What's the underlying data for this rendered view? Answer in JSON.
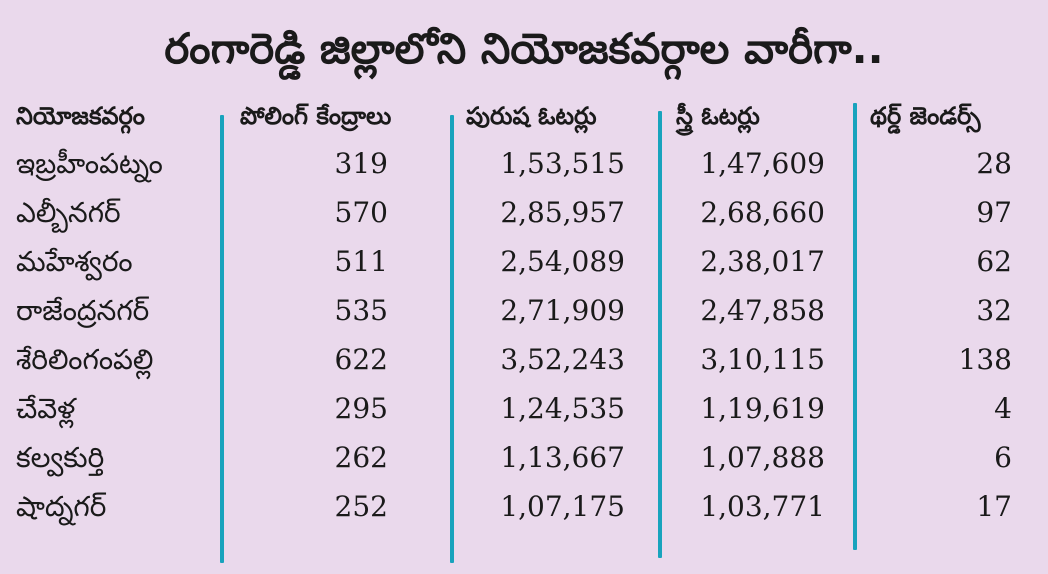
{
  "title": "రంగారెడ్డి జిల్లాలోని నియోజకవర్గాల వారీగా..",
  "headers": {
    "constituency": "నియోజకవర్గం",
    "polling_centres": "పోలింగ్ కేంద్రాలు",
    "male_voters": "పురుష ఓటర్లు",
    "female_voters": "స్త్రీ ఓటర్లు",
    "third_gender": "థర్డ్ జెండర్స్"
  },
  "rows": [
    {
      "name": "ఇబ్రహీంపట్నం",
      "polling_centres": "319",
      "male_voters": "1,53,515",
      "female_voters": "1,47,609",
      "third_gender": "28"
    },
    {
      "name": "ఎల్బీనగర్",
      "polling_centres": "570",
      "male_voters": "2,85,957",
      "female_voters": "2,68,660",
      "third_gender": "97"
    },
    {
      "name": "మహేశ్వరం",
      "polling_centres": "511",
      "male_voters": "2,54,089",
      "female_voters": "2,38,017",
      "third_gender": "62"
    },
    {
      "name": "రాజేంద్రనగర్",
      "polling_centres": "535",
      "male_voters": "2,71,909",
      "female_voters": "2,47,858",
      "third_gender": "32"
    },
    {
      "name": "శేరిలింగంపల్లి",
      "polling_centres": "622",
      "male_voters": "3,52,243",
      "female_voters": "3,10,115",
      "third_gender": "138"
    },
    {
      "name": "చేవెళ్ల",
      "polling_centres": "295",
      "male_voters": "1,24,535",
      "female_voters": "1,19,619",
      "third_gender": "4"
    },
    {
      "name": "కల్వకుర్తి",
      "polling_centres": "262",
      "male_voters": "1,13,667",
      "female_voters": "1,07,888",
      "third_gender": "6"
    },
    {
      "name": "షాద్నగర్",
      "polling_centres": "252",
      "male_voters": "1,07,175",
      "female_voters": "1,03,771",
      "third_gender": "17"
    }
  ],
  "colors": {
    "background": "#ead9ec",
    "divider": "#18a3bd",
    "text": "#1a1a1a"
  }
}
